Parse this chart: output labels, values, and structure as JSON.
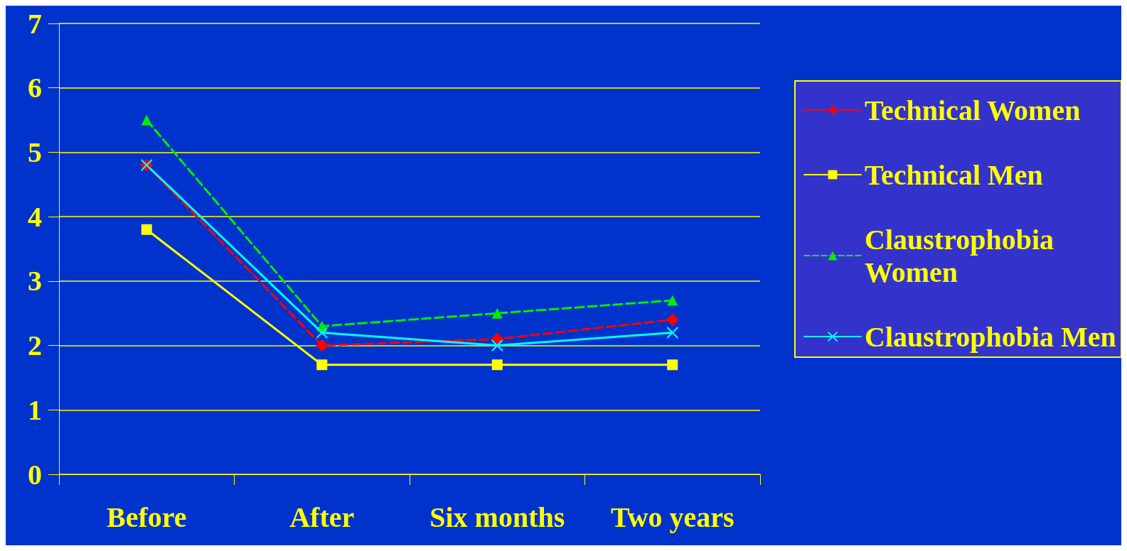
{
  "chart_data": {
    "type": "line",
    "categories": [
      "Before",
      "After",
      "Six months",
      "Two years"
    ],
    "series": [
      {
        "name": "Technical Women",
        "color": "#ff0000",
        "marker": "diamond",
        "line_style": "dashed",
        "values": [
          4.8,
          2.0,
          2.1,
          2.4
        ]
      },
      {
        "name": "Technical Men",
        "color": "#ffff00",
        "marker": "square",
        "line_style": "solid",
        "values": [
          3.8,
          1.7,
          1.7,
          1.7
        ]
      },
      {
        "name": "Claustrophobia Women",
        "color": "#00ee00",
        "marker": "triangle",
        "line_style": "dashed",
        "values": [
          5.5,
          2.3,
          2.5,
          2.7
        ]
      },
      {
        "name": "Claustrophobia Men",
        "color": "#00ffff",
        "marker": "cross",
        "line_style": "solid",
        "values": [
          4.8,
          2.2,
          2.0,
          2.2
        ]
      }
    ],
    "ylim": [
      0,
      7
    ],
    "yticks": [
      0,
      1,
      2,
      3,
      4,
      5,
      6,
      7
    ],
    "grid": "y",
    "legend": "right"
  }
}
